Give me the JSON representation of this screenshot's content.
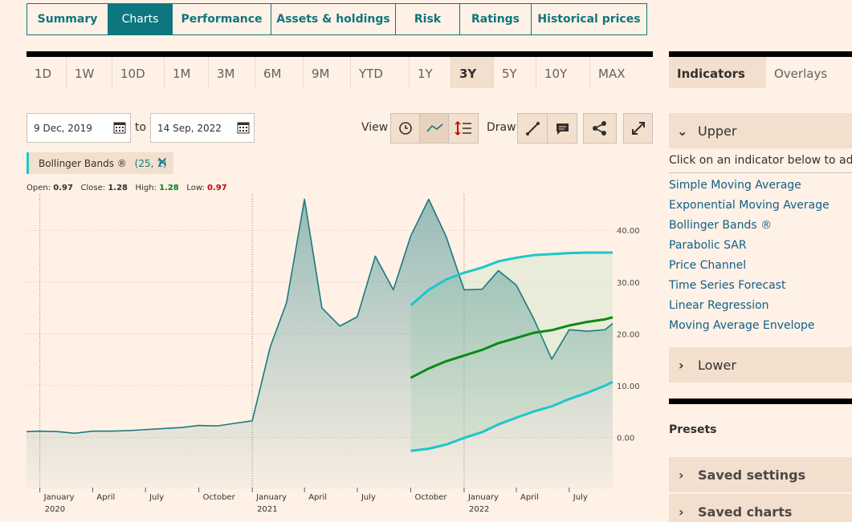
{
  "tabs": [
    "Summary",
    "Charts",
    "Performance",
    "Assets & holdings",
    "Risk",
    "Ratings",
    "Historical prices"
  ],
  "active_tab": 1,
  "ranges": [
    "1D",
    "1W",
    "10D",
    "1M",
    "3M",
    "6M",
    "9M",
    "YTD",
    "1Y",
    "3Y",
    "5Y",
    "10Y",
    "MAX"
  ],
  "active_range": 9,
  "date_from": "9 Dec, 2019",
  "date_to_label": "to",
  "date_to": "14 Sep, 2022",
  "view_label": "View",
  "draw_label": "Draw",
  "indicator_chip": {
    "name": "Bollinger Bands ®",
    "params": "(25, 1)"
  },
  "ohlc": [
    {
      "label": "Open:",
      "value": "0.97"
    },
    {
      "label": "Close:",
      "value": "1.28"
    },
    {
      "label": "High:",
      "value": "1.28"
    },
    {
      "label": "Low:",
      "value": "0.97"
    }
  ],
  "panel": {
    "tabs": [
      "Indicators",
      "Overlays"
    ],
    "upper": "Upper",
    "hint": "Click on an indicator below to add it t",
    "indicators": [
      "Simple Moving Average",
      "Exponential Moving Average",
      "Bollinger Bands ®",
      "Parabolic SAR",
      "Price Channel",
      "Time Series Forecast",
      "Linear Regression",
      "Moving Average Envelope"
    ],
    "lower": "Lower",
    "presets": "Presets",
    "saved": [
      "Saved settings",
      "Saved charts"
    ]
  },
  "chart_data": {
    "type": "line",
    "x": [
      "2019-12-09",
      "2020-01",
      "2020-02",
      "2020-03",
      "2020-04",
      "2020-05",
      "2020-06",
      "2020-07",
      "2020-08",
      "2020-09",
      "2020-10",
      "2020-11",
      "2020-12",
      "2021-01",
      "2021-02",
      "2021-03",
      "2021-04",
      "2021-05",
      "2021-06",
      "2021-07",
      "2021-08",
      "2021-09",
      "2021-10",
      "2021-11",
      "2021-12",
      "2022-01",
      "2022-02",
      "2022-03",
      "2022-04",
      "2022-05",
      "2022-06",
      "2022-07",
      "2022-08",
      "2022-09",
      "2022-09-14"
    ],
    "xlim": [
      "2019-12-09",
      "2022-09-14"
    ],
    "series": [
      {
        "name": "Price",
        "color": "#1b7a80",
        "values": [
          1.1,
          1.2,
          1.1,
          0.8,
          1.2,
          1.2,
          1.3,
          1.5,
          1.7,
          1.9,
          2.3,
          2.2,
          2.7,
          3.2,
          17.5,
          26,
          46,
          25,
          21.5,
          23.3,
          35,
          28.5,
          38.9,
          46,
          38.8,
          28.5,
          28.6,
          32.2,
          29.4,
          22.9,
          15.1,
          20.8,
          20.5,
          20.8,
          22.0
        ]
      },
      {
        "name": "Upper band",
        "color": "#1ec6c9",
        "values": [
          null,
          null,
          null,
          null,
          null,
          null,
          null,
          null,
          null,
          null,
          null,
          null,
          null,
          null,
          null,
          null,
          null,
          null,
          null,
          null,
          null,
          null,
          25.5,
          28.5,
          30.5,
          31.8,
          32.8,
          34.0,
          34.7,
          35.2,
          35.4,
          35.6,
          35.7,
          35.7,
          35.7
        ]
      },
      {
        "name": "Middle band",
        "color": "#0b8a14",
        "values": [
          null,
          null,
          null,
          null,
          null,
          null,
          null,
          null,
          null,
          null,
          null,
          null,
          null,
          null,
          null,
          null,
          null,
          null,
          null,
          null,
          null,
          null,
          11.5,
          13.3,
          14.7,
          15.8,
          16.9,
          18.2,
          19.2,
          20.2,
          20.7,
          21.6,
          22.3,
          22.8,
          23.2
        ]
      },
      {
        "name": "Lower band",
        "color": "#1ec6c9",
        "values": [
          null,
          null,
          null,
          null,
          null,
          null,
          null,
          null,
          null,
          null,
          null,
          null,
          null,
          null,
          null,
          null,
          null,
          null,
          null,
          null,
          null,
          null,
          -2.6,
          -2.2,
          -1.4,
          -0.1,
          1.0,
          2.5,
          3.8,
          5.0,
          6.0,
          7.4,
          8.6,
          10.0,
          10.7
        ]
      }
    ],
    "ylim": [
      -10,
      47
    ],
    "yticks": [
      {
        "value": 0,
        "label": "0.00"
      },
      {
        "value": 10,
        "label": "10.00"
      },
      {
        "value": 20,
        "label": "20.00"
      },
      {
        "value": 30,
        "label": "30.00"
      },
      {
        "value": 40,
        "label": "40.00"
      }
    ],
    "xticks": [
      {
        "value": "2020-01",
        "label": "January"
      },
      {
        "value": "2020-04",
        "label": "April"
      },
      {
        "value": "2020-07",
        "label": "July"
      },
      {
        "value": "2020-10",
        "label": "October"
      },
      {
        "value": "2021-01",
        "label": "January"
      },
      {
        "value": "2021-04",
        "label": "April"
      },
      {
        "value": "2021-07",
        "label": "July"
      },
      {
        "value": "2021-10",
        "label": "October"
      },
      {
        "value": "2022-01",
        "label": "January"
      },
      {
        "value": "2022-04",
        "label": "April"
      },
      {
        "value": "2022-07",
        "label": "July"
      }
    ],
    "year_labels": [
      {
        "value": "2020-01",
        "label": "2020"
      },
      {
        "value": "2021-01",
        "label": "2021"
      },
      {
        "value": "2022-01",
        "label": "2022"
      }
    ],
    "grid": true
  }
}
